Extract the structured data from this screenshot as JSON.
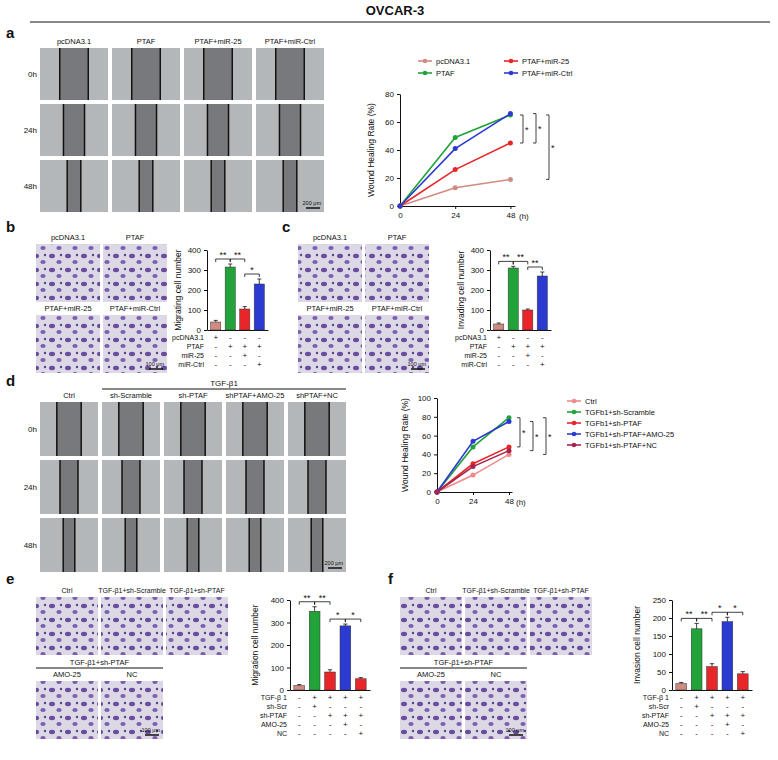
{
  "title": "OVCAR-3",
  "panels": [
    {
      "letter": "a",
      "columns": [
        "pcDNA3.1",
        "PTAF",
        "PTAF+miR-25",
        "PTAF+miR-Ctrl"
      ],
      "rows": [
        "0h",
        "24h",
        "48h"
      ],
      "scale_bar": "200 μm"
    },
    {
      "letter": "b",
      "images": [
        "pcDNA3.1",
        "PTAF",
        "PTAF+miR-25",
        "PTAF+miR-Ctrl"
      ],
      "scale_bar": "100 μm"
    },
    {
      "letter": "c",
      "images": [
        "pcDNA3.1",
        "PTAF",
        "PTAF+miR-25",
        "PTAF+miR-Ctrl"
      ],
      "scale_bar": "100 μm"
    },
    {
      "letter": "d",
      "group": "TGF-β1",
      "columns": [
        "Ctrl",
        "sh-Scramble",
        "sh-PTAF",
        "shPTAF+AMO-25",
        "shPTAF+NC"
      ],
      "rows": [
        "0h",
        "24h",
        "48h"
      ],
      "scale_bar": "200 μm"
    },
    {
      "letter": "e",
      "images": [
        "Ctrl",
        "TGF-β1+sh-Scramble",
        "TGF-β1+sh-PTAF"
      ],
      "group": "TGF-β1+sh-PTAF",
      "group_images": [
        "AMO-25",
        "NC"
      ],
      "scale_bar": "100 μm"
    },
    {
      "letter": "f",
      "images": [
        "Ctrl",
        "TGF-β1+sh-Scramble",
        "TGF-β1+sh-PTAF"
      ],
      "group": "TGF-β1+sh-PTAF",
      "group_images": [
        "AMO-25",
        "NC"
      ],
      "scale_bar": "100 μm"
    }
  ],
  "chart_data": [
    {
      "type": "line",
      "y_label": "Wound Healing Rate (%)",
      "x_label": "(h)",
      "x": [
        0,
        24,
        48
      ],
      "xlim": [
        0,
        50
      ],
      "xticks": [
        0,
        24,
        48
      ],
      "ylim": [
        0,
        80
      ],
      "yticks": [
        0,
        20,
        40,
        60,
        80
      ],
      "marker": "circle",
      "legend": "top",
      "grid": false,
      "series": [
        {
          "name": "pcDNA3.1",
          "color": "#d08a80",
          "values": [
            0,
            13,
            19
          ]
        },
        {
          "name": "PTAF",
          "color": "#22a33a",
          "values": [
            0,
            49,
            65
          ]
        },
        {
          "name": "PTAF+miR-25",
          "color": "#e8262a",
          "values": [
            0,
            26,
            45
          ]
        },
        {
          "name": "PTAF+miR-Ctrl",
          "color": "#2b3bd1",
          "values": [
            0,
            41,
            66
          ]
        }
      ],
      "significance": [
        {
          "between": [
            2,
            1
          ],
          "label": "*"
        },
        {
          "between": [
            2,
            3
          ],
          "label": "*"
        },
        {
          "between": [
            0,
            1
          ],
          "label": "*"
        }
      ]
    },
    {
      "type": "bar",
      "y_label": "Migrating cell number",
      "categories": [
        null,
        null,
        null,
        null
      ],
      "values": [
        40,
        315,
        105,
        230
      ],
      "errors": [
        8,
        15,
        12,
        25
      ],
      "colors": [
        "#d08a80",
        "#22a33a",
        "#e8262a",
        "#2b3bd1"
      ],
      "ylim": [
        0,
        400
      ],
      "yticks": [
        0,
        100,
        200,
        300,
        400
      ],
      "grid": false,
      "table": [
        {
          "label": "pcDNA3.1",
          "marks": [
            "+",
            "-",
            "-",
            "-"
          ]
        },
        {
          "label": "PTAF",
          "marks": [
            "-",
            "+",
            "+",
            "+"
          ]
        },
        {
          "label": "miR-25",
          "marks": [
            "-",
            "-",
            "+",
            "-"
          ]
        },
        {
          "label": "miR-Ctrl",
          "marks": [
            "-",
            "-",
            "-",
            "+"
          ]
        }
      ],
      "significance": [
        {
          "between": [
            0,
            1
          ],
          "label": "**"
        },
        {
          "between": [
            1,
            2
          ],
          "label": "**"
        },
        {
          "between": [
            2,
            3
          ],
          "label": "*"
        }
      ]
    },
    {
      "type": "bar",
      "y_label": "Invading cell number",
      "categories": [
        null,
        null,
        null,
        null
      ],
      "values": [
        30,
        310,
        100,
        270
      ],
      "errors": [
        5,
        8,
        5,
        20
      ],
      "colors": [
        "#d08a80",
        "#22a33a",
        "#e8262a",
        "#2b3bd1"
      ],
      "ylim": [
        0,
        400
      ],
      "yticks": [
        0,
        100,
        200,
        300,
        400
      ],
      "grid": false,
      "table": [
        {
          "label": "pcDNA3.1",
          "marks": [
            "+",
            "-",
            "-",
            "-"
          ]
        },
        {
          "label": "PTAF",
          "marks": [
            "-",
            "+",
            "+",
            "+"
          ]
        },
        {
          "label": "miR-25",
          "marks": [
            "-",
            "-",
            "+",
            "-"
          ]
        },
        {
          "label": "miR-Ctrl",
          "marks": [
            "-",
            "-",
            "-",
            "+"
          ]
        }
      ],
      "significance": [
        {
          "between": [
            0,
            1
          ],
          "label": "**"
        },
        {
          "between": [
            1,
            2
          ],
          "label": "**"
        },
        {
          "between": [
            2,
            3
          ],
          "label": "**"
        }
      ]
    },
    {
      "type": "line",
      "y_label": "Wound Healing Rate (%)",
      "x_label": "(h)",
      "x": [
        0,
        24,
        48
      ],
      "xlim": [
        0,
        50
      ],
      "xticks": [
        0,
        24,
        48
      ],
      "ylim": [
        0,
        100
      ],
      "yticks": [
        0,
        20,
        40,
        60,
        80,
        100
      ],
      "marker": "circle",
      "legend": "right",
      "grid": false,
      "series": [
        {
          "name": "Ctrl",
          "color": "#f08a8a",
          "values": [
            0,
            18,
            40
          ]
        },
        {
          "name": "TGFb1+sh-Scramble",
          "color": "#22a33a",
          "values": [
            0,
            48,
            79
          ]
        },
        {
          "name": "TGFb1+sh-PTAF",
          "color": "#e8262a",
          "values": [
            0,
            30,
            48
          ]
        },
        {
          "name": "TGFb1+sh-PTAF+AMO-25",
          "color": "#2b3bd1",
          "values": [
            0,
            54,
            75
          ]
        },
        {
          "name": "TGFb1+sh-PTAF+NC",
          "color": "#a3264f",
          "values": [
            0,
            27,
            44
          ]
        }
      ],
      "significance": [
        {
          "between": [
            2,
            1
          ],
          "label": "*"
        },
        {
          "between": [
            4,
            3
          ],
          "label": "*"
        },
        {
          "between": [
            0,
            1
          ],
          "label": "*"
        }
      ]
    },
    {
      "type": "bar",
      "y_label": "Migration cell number",
      "categories": [
        null,
        null,
        null,
        null,
        null
      ],
      "values": [
        20,
        350,
        80,
        285,
        50
      ],
      "errors": [
        4,
        20,
        10,
        8,
        5
      ],
      "colors": [
        "#d08a80",
        "#22a33a",
        "#e8262a",
        "#2b3bd1",
        "#e8262a"
      ],
      "ylim": [
        0,
        400
      ],
      "yticks": [
        0,
        100,
        200,
        300,
        400
      ],
      "grid": false,
      "table": [
        {
          "label": "TGF-β 1",
          "marks": [
            "-",
            "+",
            "+",
            "+",
            "+"
          ]
        },
        {
          "label": "sh-Scr",
          "marks": [
            "-",
            "+",
            "-",
            "-",
            "-"
          ]
        },
        {
          "label": "sh-PTAF",
          "marks": [
            "-",
            "-",
            "+",
            "+",
            "+"
          ]
        },
        {
          "label": "AMO-25",
          "marks": [
            "-",
            "-",
            "-",
            "+",
            "-"
          ]
        },
        {
          "label": "NC",
          "marks": [
            "-",
            "-",
            "-",
            "-",
            "+"
          ]
        }
      ],
      "significance": [
        {
          "between": [
            0,
            1
          ],
          "label": "**"
        },
        {
          "between": [
            1,
            2
          ],
          "label": "**"
        },
        {
          "between": [
            2,
            3
          ],
          "label": "*"
        },
        {
          "between": [
            3,
            4
          ],
          "label": "*"
        }
      ]
    },
    {
      "type": "bar",
      "y_label": "Invasion cell number",
      "categories": [
        null,
        null,
        null,
        null,
        null
      ],
      "values": [
        18,
        170,
        65,
        190,
        45
      ],
      "errors": [
        3,
        15,
        8,
        12,
        6
      ],
      "colors": [
        "#d08a80",
        "#22a33a",
        "#e8262a",
        "#2b3bd1",
        "#e8262a"
      ],
      "ylim": [
        0,
        250
      ],
      "yticks": [
        0,
        50,
        100,
        150,
        200,
        250
      ],
      "grid": false,
      "table": [
        {
          "label": "TGF-β 1",
          "marks": [
            "-",
            "+",
            "+",
            "+",
            "+"
          ]
        },
        {
          "label": "sh-Scr",
          "marks": [
            "-",
            "+",
            "-",
            "-",
            "-"
          ]
        },
        {
          "label": "sh-PTAF",
          "marks": [
            "-",
            "-",
            "+",
            "+",
            "+"
          ]
        },
        {
          "label": "AMO-25",
          "marks": [
            "-",
            "-",
            "-",
            "+",
            "-"
          ]
        },
        {
          "label": "NC",
          "marks": [
            "-",
            "-",
            "-",
            "-",
            "+"
          ]
        }
      ],
      "significance": [
        {
          "between": [
            0,
            1
          ],
          "label": "**"
        },
        {
          "between": [
            1,
            2
          ],
          "label": "**"
        },
        {
          "between": [
            2,
            3
          ],
          "label": "*"
        },
        {
          "between": [
            3,
            4
          ],
          "label": "*"
        }
      ]
    }
  ]
}
